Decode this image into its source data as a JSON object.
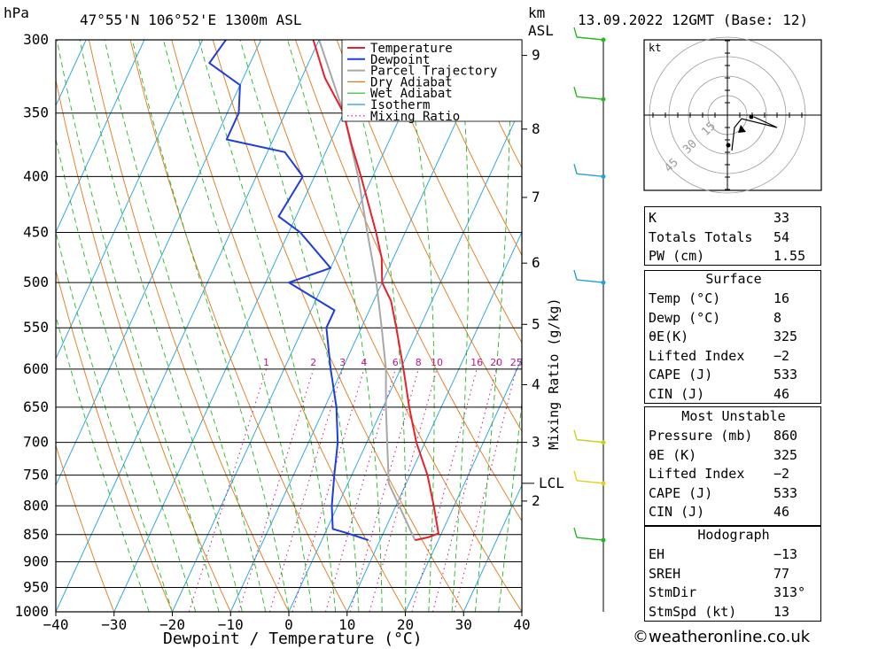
{
  "header": {
    "hpa_label": "hPa",
    "location": "47°55'N  106°52'E  1300m  ASL",
    "km_label": "km",
    "asl_label": "ASL",
    "datetime": "13.09.2022  12GMT  (Base: 12)"
  },
  "chart_data": {
    "type": "skew-t",
    "title": "47°55'N  106°52'E  1300m  ASL",
    "xlabel": "Dewpoint / Temperature (°C)",
    "ylabel": "hPa",
    "xlim": [
      -40,
      40
    ],
    "ylim": [
      1000,
      300
    ],
    "x_ticks": [
      -40,
      -30,
      -20,
      -10,
      0,
      10,
      20,
      30,
      40
    ],
    "x_tick_labels": [
      "−40",
      "−30",
      "−20",
      "−10",
      "0",
      "10",
      "20",
      "30",
      "40"
    ],
    "pressure_levels": [
      300,
      350,
      400,
      450,
      500,
      550,
      600,
      650,
      700,
      750,
      800,
      850,
      900,
      950,
      1000
    ],
    "height_km_ticks": [
      {
        "label": "9",
        "p": 310
      },
      {
        "label": "8",
        "p": 362
      },
      {
        "label": "7",
        "p": 418
      },
      {
        "label": "6",
        "p": 480
      },
      {
        "label": "5",
        "p": 546
      },
      {
        "label": "4",
        "p": 620
      },
      {
        "label": "3",
        "p": 700
      },
      {
        "label": "2",
        "p": 792
      }
    ],
    "lcl": {
      "label": "LCL",
      "p": 763
    },
    "mixing_ratio_axis_label": "Mixing Ratio (g/kg)",
    "mixing_ratios": [
      "1",
      "2",
      "3",
      "4",
      "6",
      "8",
      "10",
      "16",
      "20",
      "25"
    ],
    "legend": [
      "Temperature",
      "Dewpoint",
      "Parcel Trajectory",
      "Dry Adiabat",
      "Wet Adiabat",
      "Isotherm",
      "Mixing Ratio"
    ],
    "colors": {
      "temperature": "#e8202a",
      "dewpoint": "#1f3dd8",
      "parcel": "#a8a8a8",
      "dry_adiabat": "#e07818",
      "wet_adiabat": "#22b822",
      "isotherm": "#1fa0e0",
      "mixing_ratio": "#c0158a"
    },
    "temperature": [
      {
        "p": 860,
        "t": 16
      },
      {
        "p": 855,
        "t": 18
      },
      {
        "p": 848,
        "t": 19.5
      },
      {
        "p": 800,
        "t": 16.5
      },
      {
        "p": 750,
        "t": 13
      },
      {
        "p": 700,
        "t": 8.5
      },
      {
        "p": 650,
        "t": 4.5
      },
      {
        "p": 600,
        "t": 0.5
      },
      {
        "p": 550,
        "t": -4
      },
      {
        "p": 520,
        "t": -7
      },
      {
        "p": 500,
        "t": -10
      },
      {
        "p": 475,
        "t": -12
      },
      {
        "p": 450,
        "t": -15
      },
      {
        "p": 400,
        "t": -22
      },
      {
        "p": 375,
        "t": -26
      },
      {
        "p": 350,
        "t": -30
      },
      {
        "p": 325,
        "t": -36
      },
      {
        "p": 300,
        "t": -41
      }
    ],
    "dewpoint": [
      {
        "p": 860,
        "t": 8
      },
      {
        "p": 848,
        "t": 4
      },
      {
        "p": 840,
        "t": 1
      },
      {
        "p": 800,
        "t": -1
      },
      {
        "p": 750,
        "t": -3
      },
      {
        "p": 700,
        "t": -5
      },
      {
        "p": 650,
        "t": -8
      },
      {
        "p": 600,
        "t": -12
      },
      {
        "p": 550,
        "t": -16
      },
      {
        "p": 530,
        "t": -16
      },
      {
        "p": 500,
        "t": -26
      },
      {
        "p": 485,
        "t": -20
      },
      {
        "p": 450,
        "t": -28
      },
      {
        "p": 435,
        "t": -33
      },
      {
        "p": 400,
        "t": -32
      },
      {
        "p": 380,
        "t": -37
      },
      {
        "p": 370,
        "t": -48
      },
      {
        "p": 350,
        "t": -48
      },
      {
        "p": 330,
        "t": -50
      },
      {
        "p": 315,
        "t": -57
      },
      {
        "p": 300,
        "t": -56
      }
    ],
    "parcel": [
      {
        "p": 860,
        "t": 16
      },
      {
        "p": 763,
        "t": 7
      },
      {
        "p": 700,
        "t": 3.5
      },
      {
        "p": 650,
        "t": 0.5
      },
      {
        "p": 600,
        "t": -2.5
      },
      {
        "p": 550,
        "t": -6.5
      },
      {
        "p": 500,
        "t": -11
      },
      {
        "p": 450,
        "t": -16.5
      },
      {
        "p": 400,
        "t": -22.5
      },
      {
        "p": 350,
        "t": -30
      },
      {
        "p": 300,
        "t": -40
      }
    ],
    "wind_barbs": [
      {
        "p": 300,
        "color": "#22b822"
      },
      {
        "p": 340,
        "color": "#22b822"
      },
      {
        "p": 400,
        "color": "#1fa0e0"
      },
      {
        "p": 500,
        "color": "#1fa0e0"
      },
      {
        "p": 700,
        "color": "#c8d020"
      },
      {
        "p": 763,
        "color": "#e0d020"
      },
      {
        "p": 860,
        "color": "#22b822"
      }
    ]
  },
  "hodograph": {
    "unit": "kt",
    "ring_labels": [
      "15",
      "30",
      "45"
    ]
  },
  "indices": {
    "top": [
      {
        "key": "K",
        "value": "33"
      },
      {
        "key": "Totals Totals",
        "value": "54"
      },
      {
        "key": "PW (cm)",
        "value": "1.55"
      }
    ],
    "surface_title": "Surface",
    "surface": [
      {
        "key": "Temp (°C)",
        "value": "16"
      },
      {
        "key": "Dewp (°C)",
        "value": "8"
      },
      {
        "key": "θE(K)",
        "value": "325"
      },
      {
        "key": "Lifted Index",
        "value": "−2"
      },
      {
        "key": "CAPE (J)",
        "value": "533"
      },
      {
        "key": "CIN (J)",
        "value": "46"
      }
    ],
    "mu_title": "Most Unstable",
    "mu": [
      {
        "key": "Pressure (mb)",
        "value": "860"
      },
      {
        "key": "θE (K)",
        "value": "325"
      },
      {
        "key": "Lifted Index",
        "value": "−2"
      },
      {
        "key": "CAPE (J)",
        "value": "533"
      },
      {
        "key": "CIN (J)",
        "value": "46"
      }
    ],
    "hodo_title": "Hodograph",
    "hodo": [
      {
        "key": "EH",
        "value": "−13"
      },
      {
        "key": "SREH",
        "value": "77"
      },
      {
        "key": "StmDir",
        "value": "313°"
      },
      {
        "key": "StmSpd (kt)",
        "value": "13"
      }
    ]
  },
  "footer": {
    "credit": "©weatheronline.co.uk"
  }
}
